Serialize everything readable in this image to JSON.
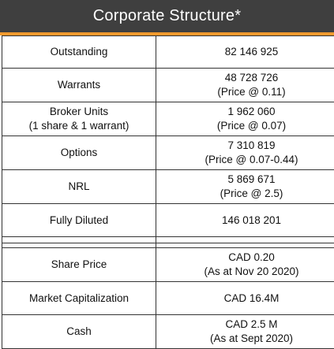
{
  "title": "Corporate Structure*",
  "rows_top": [
    {
      "label": "Outstanding",
      "value_lines": [
        "82 146 925"
      ]
    },
    {
      "label": "Warrants",
      "value_lines": [
        "48 728 726",
        "(Price @ 0.11)"
      ]
    },
    {
      "label_lines": [
        "Broker Units",
        "(1 share & 1 warrant)"
      ],
      "value_lines": [
        "1 962 060",
        "(Price @ 0.07)"
      ]
    },
    {
      "label": "Options",
      "value_lines": [
        "7 310 819",
        "(Price @ 0.07-0.44)"
      ]
    },
    {
      "label": "NRL",
      "value_lines": [
        "5 869 671",
        "(Price @ 2.5)"
      ]
    },
    {
      "label": "Fully Diluted",
      "value_lines": [
        "146 018 201"
      ]
    }
  ],
  "rows_bottom": [
    {
      "label": "Share Price",
      "value_lines": [
        "CAD 0.20",
        "(As at Nov 20 2020)"
      ]
    },
    {
      "label": "Market Capitalization",
      "value_lines": [
        "CAD 16.4M"
      ]
    },
    {
      "label": "Cash",
      "value_lines": [
        "CAD 2.5 M",
        "(As at Sept 2020)"
      ]
    }
  ]
}
